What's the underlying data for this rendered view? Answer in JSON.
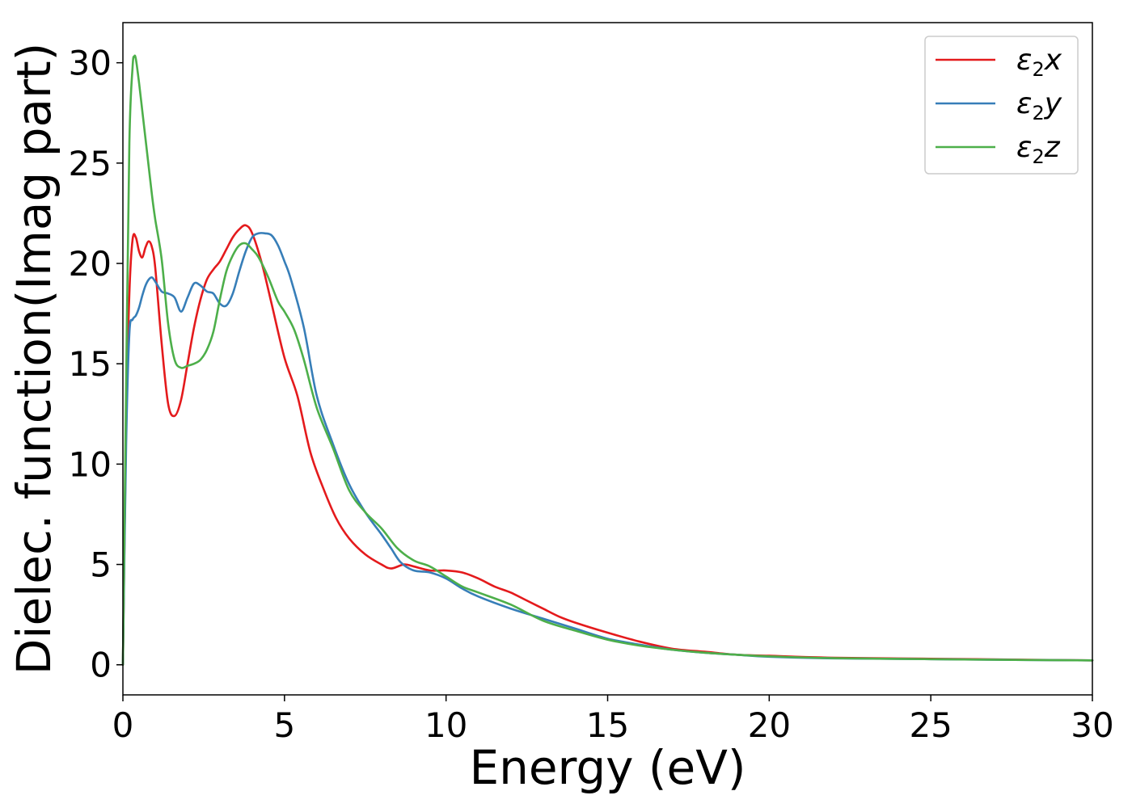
{
  "chart_data": {
    "type": "line",
    "xlabel": "Energy (eV)",
    "ylabel": "Dielec. function(Imag part)",
    "xlim": [
      0,
      30
    ],
    "ylim": [
      -1.5,
      32
    ],
    "xticks": [
      0,
      5,
      10,
      15,
      20,
      25,
      30
    ],
    "yticks": [
      0,
      5,
      10,
      15,
      20,
      25,
      30
    ],
    "grid": false,
    "legend_position": "top-right",
    "series": [
      {
        "name": "ε2x",
        "label_base": "ε",
        "label_sub": "2",
        "label_tail": "x",
        "color": "#e41a1c",
        "x": [
          0,
          0.1,
          0.2,
          0.3,
          0.4,
          0.5,
          0.6,
          0.7,
          0.8,
          0.9,
          1.0,
          1.2,
          1.4,
          1.6,
          1.8,
          2.0,
          2.2,
          2.4,
          2.6,
          2.8,
          3.0,
          3.2,
          3.4,
          3.6,
          3.8,
          4.0,
          4.3,
          4.6,
          5.0,
          5.4,
          5.8,
          6.2,
          6.6,
          7.0,
          7.5,
          8.0,
          8.3,
          8.7,
          9.0,
          9.5,
          10.0,
          10.5,
          11.0,
          11.5,
          12.0,
          12.5,
          13.0,
          13.5,
          14.0,
          15.0,
          16.0,
          17.0,
          18.0,
          19.0,
          20.0,
          22.0,
          25.0,
          28.0,
          30.0
        ],
        "values": [
          0,
          12.0,
          18.5,
          21.2,
          21.3,
          20.6,
          20.3,
          20.8,
          21.1,
          20.8,
          19.8,
          16.0,
          13.0,
          12.4,
          13.2,
          15.0,
          16.8,
          18.2,
          19.2,
          19.7,
          20.1,
          20.7,
          21.3,
          21.7,
          21.9,
          21.5,
          20.0,
          18.0,
          15.3,
          13.4,
          10.6,
          8.8,
          7.3,
          6.3,
          5.5,
          5.0,
          4.8,
          5.0,
          4.9,
          4.7,
          4.7,
          4.6,
          4.3,
          3.9,
          3.6,
          3.2,
          2.8,
          2.4,
          2.1,
          1.6,
          1.15,
          0.8,
          0.65,
          0.5,
          0.45,
          0.35,
          0.3,
          0.25,
          0.22
        ]
      },
      {
        "name": "ε2y",
        "label_base": "ε",
        "label_sub": "2",
        "label_tail": "y",
        "color": "#377eb8",
        "x": [
          0,
          0.1,
          0.2,
          0.3,
          0.4,
          0.5,
          0.6,
          0.7,
          0.8,
          0.9,
          1.0,
          1.2,
          1.4,
          1.6,
          1.8,
          2.0,
          2.2,
          2.4,
          2.6,
          2.8,
          3.0,
          3.2,
          3.4,
          3.6,
          3.8,
          4.0,
          4.2,
          4.4,
          4.6,
          4.8,
          5.0,
          5.2,
          5.6,
          6.0,
          6.5,
          7.0,
          7.5,
          8.0,
          8.3,
          8.6,
          9.0,
          9.5,
          10.0,
          10.5,
          11.0,
          12.0,
          13.0,
          14.0,
          15.0,
          16.0,
          17.0,
          18.0,
          19.0,
          20.0,
          22.0,
          25.0,
          28.0,
          30.0
        ],
        "values": [
          0,
          11.0,
          16.5,
          17.2,
          17.4,
          17.8,
          18.4,
          18.9,
          19.2,
          19.3,
          19.1,
          18.6,
          18.5,
          18.3,
          17.6,
          18.3,
          19.0,
          18.9,
          18.6,
          18.5,
          18.0,
          17.9,
          18.5,
          19.6,
          20.6,
          21.3,
          21.5,
          21.5,
          21.4,
          20.9,
          20.1,
          19.2,
          16.8,
          13.4,
          11.0,
          9.0,
          7.6,
          6.5,
          5.8,
          5.1,
          4.7,
          4.6,
          4.3,
          3.8,
          3.4,
          2.8,
          2.3,
          1.8,
          1.3,
          1.0,
          0.75,
          0.6,
          0.5,
          0.4,
          0.32,
          0.28,
          0.24,
          0.22
        ]
      },
      {
        "name": "ε2z",
        "label_base": "ε",
        "label_sub": "2",
        "label_tail": "z",
        "color": "#4daf4a",
        "x": [
          0,
          0.1,
          0.2,
          0.3,
          0.35,
          0.4,
          0.5,
          0.6,
          0.7,
          0.8,
          0.9,
          1.0,
          1.2,
          1.4,
          1.6,
          1.8,
          2.0,
          2.2,
          2.4,
          2.6,
          2.8,
          3.0,
          3.2,
          3.4,
          3.6,
          3.8,
          4.0,
          4.2,
          4.5,
          4.8,
          5.0,
          5.3,
          5.6,
          6.0,
          6.5,
          7.0,
          7.5,
          8.0,
          8.5,
          9.0,
          9.5,
          10.0,
          10.5,
          11.0,
          12.0,
          13.0,
          14.0,
          15.0,
          16.0,
          17.0,
          18.0,
          19.0,
          20.0,
          22.0,
          25.0,
          28.0,
          30.0
        ],
        "values": [
          0,
          14.0,
          26.0,
          29.8,
          30.3,
          30.2,
          29.0,
          27.6,
          26.2,
          24.8,
          23.4,
          22.2,
          20.2,
          17.0,
          15.2,
          14.8,
          14.9,
          15.0,
          15.2,
          15.7,
          16.6,
          18.2,
          19.6,
          20.4,
          20.9,
          21.0,
          20.7,
          20.3,
          19.3,
          18.1,
          17.6,
          16.7,
          15.2,
          12.8,
          10.8,
          8.7,
          7.6,
          6.8,
          5.8,
          5.2,
          4.9,
          4.4,
          3.9,
          3.6,
          3.0,
          2.2,
          1.7,
          1.25,
          0.95,
          0.75,
          0.6,
          0.5,
          0.42,
          0.33,
          0.28,
          0.24,
          0.22
        ]
      }
    ]
  }
}
